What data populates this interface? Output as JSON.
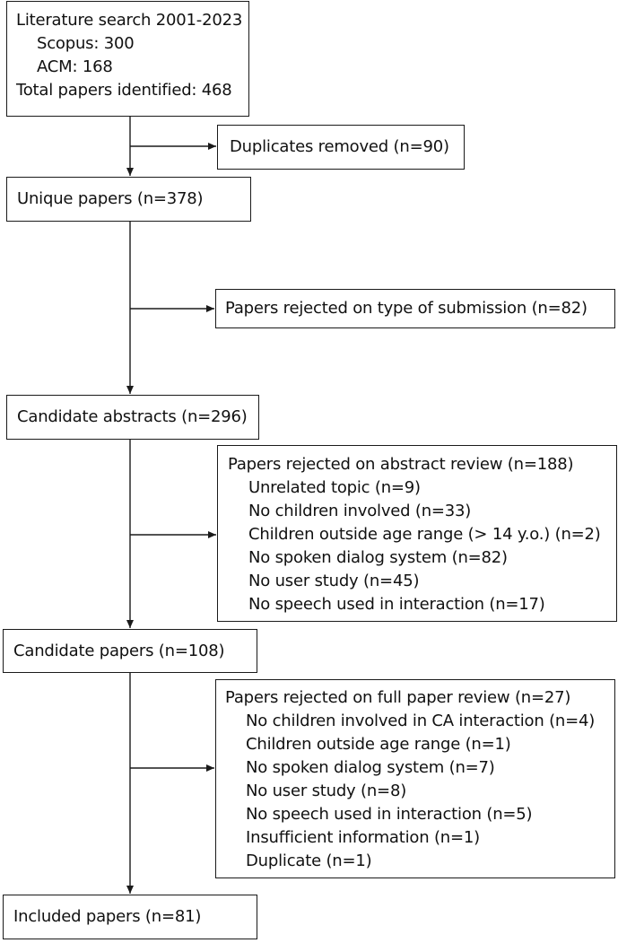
{
  "nodes": {
    "search": {
      "title": "Literature search 2001-2023",
      "items": [
        "Scopus: 300",
        "ACM: 168"
      ],
      "total": "Total papers identified: 468"
    },
    "duplicates": {
      "title": "Duplicates removed (n=90)"
    },
    "unique": {
      "title": "Unique papers (n=378)"
    },
    "rejected_type": {
      "title": "Papers rejected on type of submission (n=82)"
    },
    "abstracts": {
      "title": "Candidate abstracts (n=296)"
    },
    "rejected_abstract": {
      "title": "Papers rejected on abstract review (n=188)",
      "items": [
        "Unrelated topic (n=9)",
        "No children involved (n=33)",
        "Children outside age range (> 14 y.o.) (n=2)",
        "No spoken dialog system (n=82)",
        "No user study (n=45)",
        "No speech used in interaction (n=17)"
      ]
    },
    "candidates": {
      "title": "Candidate papers (n=108)"
    },
    "rejected_full": {
      "title": "Papers rejected on full paper review (n=27)",
      "items": [
        "No children involved in CA interaction (n=4)",
        "Children outside age range (n=1)",
        "No spoken dialog system (n=7)",
        "No user study (n=8)",
        "No speech used in interaction (n=5)",
        "Insufficient information (n=1)",
        "Duplicate (n=1)"
      ]
    },
    "included": {
      "title": "Included papers (n=81)"
    }
  },
  "colors": {
    "stroke": "#1a1a1a",
    "text": "#111111",
    "background": "#ffffff"
  }
}
